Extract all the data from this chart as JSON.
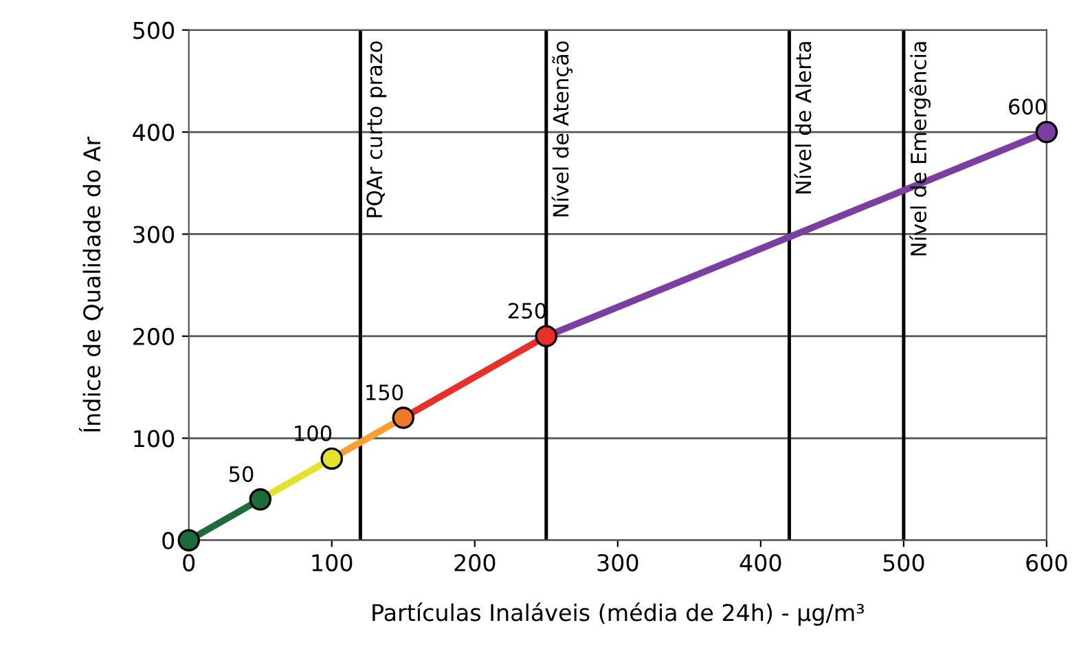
{
  "chart_data": {
    "type": "line",
    "xlabel": "Partículas Inaláveis (média de 24h) - µg/m³",
    "ylabel": "Índice de Qualidade do Ar",
    "series": [
      {
        "color": "#1e6b3a",
        "x": [
          0,
          50
        ],
        "values": [
          0,
          40
        ]
      },
      {
        "color": "#e3e32a",
        "x": [
          50,
          100
        ],
        "values": [
          40,
          80
        ]
      },
      {
        "color": "#f5a030",
        "x": [
          100,
          150
        ],
        "values": [
          80,
          120
        ]
      },
      {
        "color": "#e8302a",
        "x": [
          150,
          250
        ],
        "values": [
          120,
          200
        ]
      },
      {
        "color": "#7a3fa0",
        "x": [
          250,
          600
        ],
        "values": [
          200,
          400
        ]
      },
      {
        "type": "scatter",
        "x": [
          0,
          50,
          100,
          150,
          250,
          600
        ],
        "values": [
          0,
          40,
          80,
          120,
          200,
          400
        ],
        "colors": [
          "#1e6b3a",
          "#1e6b3a",
          "#e3e32a",
          "#f07a28",
          "#e8302a",
          "#7a3fa0"
        ],
        "marker": "circle"
      }
    ],
    "annotations": [
      {
        "text": "50",
        "x": 50,
        "y": 40
      },
      {
        "text": "100",
        "x": 100,
        "y": 80
      },
      {
        "text": "150",
        "x": 150,
        "y": 120
      },
      {
        "text": "250",
        "x": 250,
        "y": 200
      },
      {
        "text": "600",
        "x": 600,
        "y": 400
      }
    ],
    "ref_lines": [
      {
        "axis": "x",
        "value": 120,
        "label": "PQAr curto prazo",
        "color": "#000000"
      },
      {
        "axis": "x",
        "value": 250,
        "label": "Nível de Atenção",
        "color": "#000000"
      },
      {
        "axis": "x",
        "value": 420,
        "label": "Nível de Alerta",
        "color": "#000000"
      },
      {
        "axis": "x",
        "value": 500,
        "label": "Nível de Emergência",
        "color": "#000000"
      }
    ],
    "xlim": [
      0,
      600
    ],
    "xticks": [
      0,
      100,
      200,
      300,
      400,
      500,
      600
    ],
    "ylim": [
      0,
      500
    ],
    "yticks": [
      0,
      100,
      200,
      300,
      400,
      500
    ],
    "grid": "y",
    "line_style": "solid"
  }
}
